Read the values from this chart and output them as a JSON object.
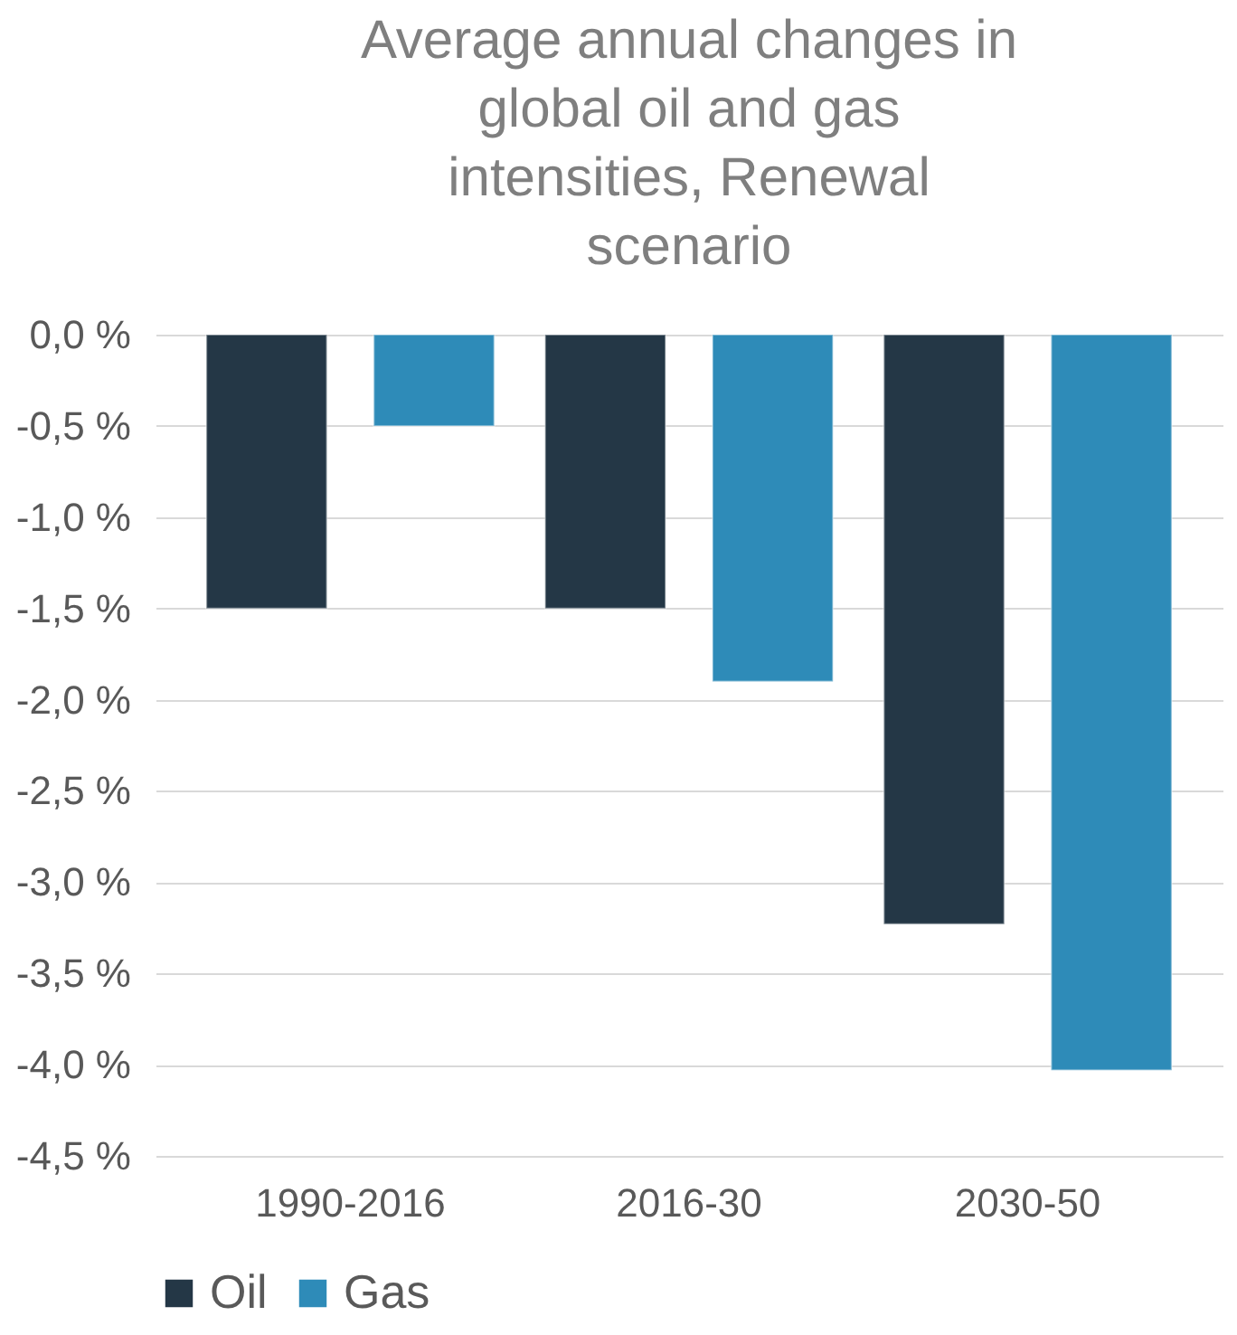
{
  "chart_data": {
    "type": "bar",
    "title": "Average annual changes in global oil and gas intensities, Renewal scenario",
    "categories": [
      "1990-2016",
      "2016-30",
      "2030-50"
    ],
    "series": [
      {
        "name": "Oil",
        "color": "#243746",
        "values": [
          -1.5,
          -1.5,
          -3.23
        ]
      },
      {
        "name": "Gas",
        "color": "#2e8bb8",
        "values": [
          -0.5,
          -1.9,
          -4.03
        ]
      }
    ],
    "ylim": [
      -4.5,
      0
    ],
    "yticks": [
      {
        "value": 0,
        "label": "0,0 %"
      },
      {
        "value": -0.5,
        "label": "-0,5 %"
      },
      {
        "value": -1,
        "label": "-1,0 %"
      },
      {
        "value": -1.5,
        "label": "-1,5 %"
      },
      {
        "value": -2,
        "label": "-2,0 %"
      },
      {
        "value": -2.5,
        "label": "-2,5 %"
      },
      {
        "value": -3,
        "label": "-3,0 %"
      },
      {
        "value": -3.5,
        "label": "-3,5 %"
      },
      {
        "value": -4,
        "label": "-4,0 %"
      },
      {
        "value": -4.5,
        "label": "-4,5 %"
      }
    ],
    "grid": "y",
    "legend": "bottom"
  }
}
